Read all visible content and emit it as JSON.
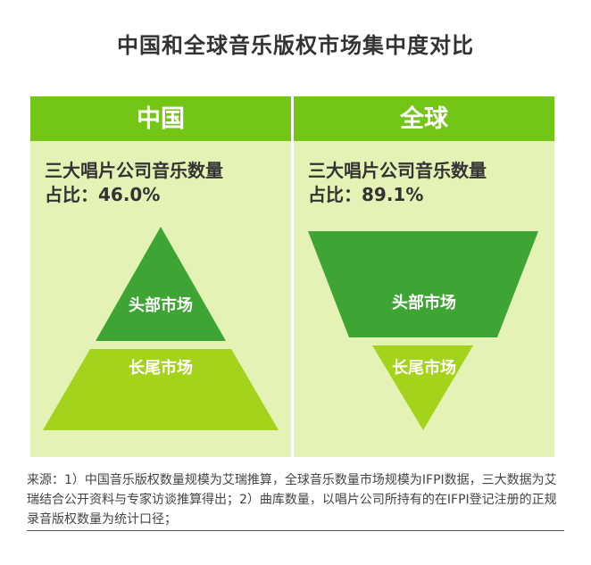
{
  "title": "中国和全球音乐版权市场集中度对比",
  "panels": [
    {
      "header": "中国",
      "text_line1": "三大唱片公司音乐数量",
      "text_line2": "占比：46.0%",
      "share_percent": 46.0,
      "top_label": "头部市场",
      "bottom_label": "长尾市场"
    },
    {
      "header": "全球",
      "text_line1": "三大唱片公司音乐数量",
      "text_line2": "占比：89.1%",
      "share_percent": 89.1,
      "top_label": "头部市场",
      "bottom_label": "长尾市场"
    }
  ],
  "source": "来源：1）中国音乐版权数量规模为艾瑞推算，全球音乐数量市场规模为IFPI数据，三大数据为艾瑞结合公开资料与专家访谈推算得出；2）曲库数量，以唱片公司所持有的在IFPI登记注册的正规录音版权数量为统计口径；",
  "colors": {
    "header_green": "#74c616",
    "panel_bg": "#e4f2b6",
    "dark_green": "#3ea534",
    "light_green": "#a3d31a"
  }
}
